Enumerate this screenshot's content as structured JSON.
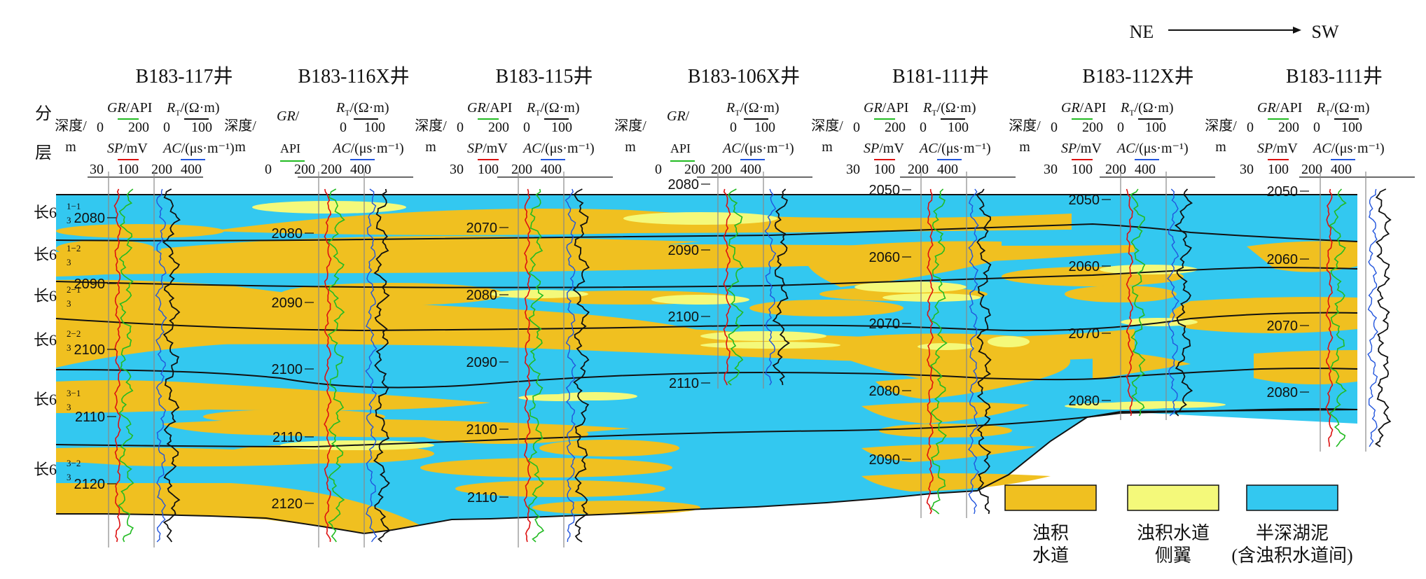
{
  "direction": {
    "from": "NE",
    "to": "SW"
  },
  "column_header": {
    "line1": "分",
    "line2": "层"
  },
  "layers": [
    {
      "base": "长6",
      "sub": "3",
      "sup": "1−1"
    },
    {
      "base": "长6",
      "sub": "3",
      "sup": "1−2"
    },
    {
      "base": "长6",
      "sub": "3",
      "sup": "2−1"
    },
    {
      "base": "长6",
      "sub": "3",
      "sup": "2−2"
    },
    {
      "base": "长6",
      "sub": "3",
      "sup": "3−1"
    },
    {
      "base": "长6",
      "sub": "3",
      "sup": "3−2"
    }
  ],
  "curve_labels": {
    "depth": "深度/",
    "depth_unit": "m",
    "gr": "GR",
    "gr_unit": "/API",
    "rt": "R",
    "rt_sub": "T",
    "rt_unit": "/(Ω·m)",
    "sp": "SP",
    "sp_unit": "/mV",
    "ac": "AC",
    "ac_unit": "/(μs·m⁻¹)"
  },
  "scales": {
    "gr": [
      "0",
      "200"
    ],
    "rt": [
      "0",
      "100"
    ],
    "sp": [
      "30",
      "100"
    ],
    "ac": [
      "200",
      "400"
    ]
  },
  "wells": [
    {
      "name": "B183-117井",
      "depths": [
        "2080",
        "2090",
        "2100",
        "2110",
        "2120"
      ]
    },
    {
      "name": "B183-116X井",
      "depths": [
        "2080",
        "2090",
        "2100",
        "2110",
        "2120"
      ]
    },
    {
      "name": "B183-115井",
      "depths": [
        "2070",
        "2080",
        "2090",
        "2100",
        "2110"
      ]
    },
    {
      "name": "B183-106X井",
      "depths": [
        "2080",
        "2090",
        "2100",
        "2110"
      ]
    },
    {
      "name": "B181-111井",
      "depths": [
        "2050",
        "2060",
        "2070",
        "2080",
        "2090"
      ]
    },
    {
      "name": "B183-112X井",
      "depths": [
        "2050",
        "2060",
        "2070",
        "2080"
      ]
    },
    {
      "name": "B183-111井",
      "depths": [
        "2050",
        "2060",
        "2070",
        "2080"
      ]
    }
  ],
  "legend": [
    {
      "label": [
        "浊积",
        "水道"
      ],
      "color": "#f0c020"
    },
    {
      "label": [
        "浊积水道",
        "侧翼"
      ],
      "color": "#f4f97a"
    },
    {
      "label": [
        "半深湖泥",
        "(含浊积水道间)"
      ],
      "color": "#33c8f0"
    }
  ],
  "colors": {
    "mud": "#33c8f0",
    "channel": "#f0c020",
    "flank": "#f4f97a",
    "gr": "#22bb22",
    "sp": "#dd1111",
    "ac": "#2255dd",
    "rt": "#111111"
  }
}
